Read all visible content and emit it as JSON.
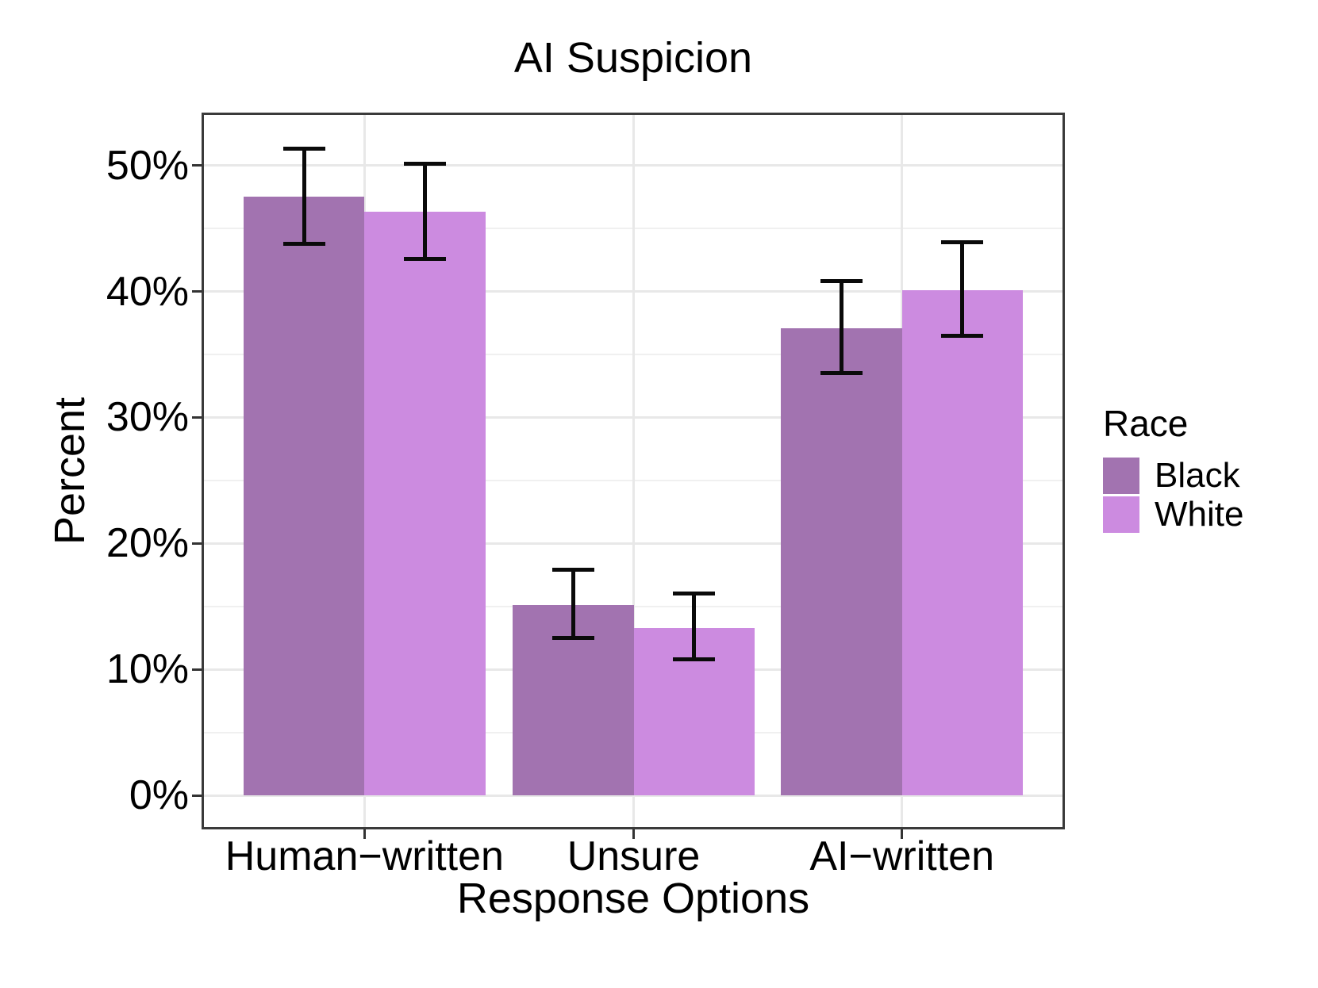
{
  "chart_data": {
    "type": "bar",
    "title": "AI Suspicion",
    "xlabel": "Response Options",
    "ylabel": "Percent",
    "categories": [
      "Human−written",
      "Unsure",
      "AI−written"
    ],
    "series": [
      {
        "name": "Black",
        "color": "#A273B0",
        "values": [
          47.5,
          15.1,
          37.1
        ],
        "err_low": [
          43.8,
          12.5,
          33.5
        ],
        "err_high": [
          51.3,
          17.9,
          40.8
        ]
      },
      {
        "name": "White",
        "color": "#CC8BE0",
        "values": [
          46.3,
          13.3,
          40.1
        ],
        "err_low": [
          42.6,
          10.8,
          36.5
        ],
        "err_high": [
          50.1,
          16.0,
          43.9
        ]
      }
    ],
    "y_axis": {
      "tick_labels": [
        "0%",
        "10%",
        "20%",
        "30%",
        "40%",
        "50%"
      ],
      "tick_values": [
        0,
        10,
        20,
        30,
        40,
        50
      ],
      "minor_tick_values": [
        5,
        15,
        25,
        35,
        45
      ],
      "ylim": [
        -2.5,
        54
      ]
    },
    "legend": {
      "title": "Race",
      "position": "right",
      "entries": [
        "Black",
        "White"
      ]
    },
    "grid": true,
    "error_bars": true,
    "colors": {
      "background": "#FFFFFF",
      "panel_background": "#FFFFFF",
      "panel_border": "#3A3A3A",
      "grid_major": "#E8E8E8",
      "grid_minor": "#F0F0F0",
      "axis_tick": "#333333",
      "error_bar": "#0A0A0A",
      "text": "#000000"
    }
  }
}
